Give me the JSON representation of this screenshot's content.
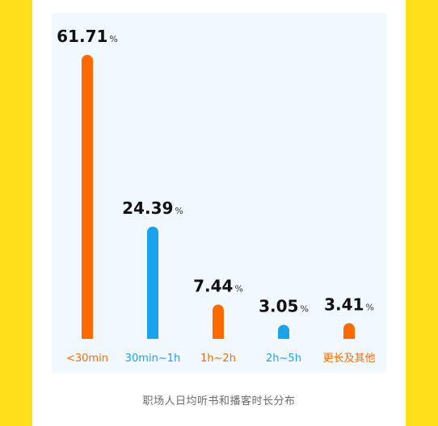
{
  "chart_data": {
    "type": "bar",
    "title": "",
    "caption": "职场人日均听书和播客时长分布",
    "categories": [
      "<30min",
      "30min~1h",
      "1h~2h",
      "2h~5h",
      "更长及其他"
    ],
    "values": [
      61.71,
      24.39,
      7.44,
      3.05,
      3.41
    ],
    "value_unit": "%",
    "value_labels": [
      "61.71",
      "24.39",
      "7.44",
      "3.05",
      "3.41"
    ],
    "bar_colors": [
      "#ff6a00",
      "#1aa3ea",
      "#ff6a00",
      "#1aa3ea",
      "#ff6a00"
    ],
    "xlabel": "",
    "ylabel": "",
    "ylim": [
      0,
      61.71
    ],
    "grid": false,
    "legend": "none"
  },
  "colors": {
    "border": "#ffe01b",
    "panel": "#f2f8ff",
    "orange": "#ff6a00",
    "blue": "#1aa3ea"
  }
}
